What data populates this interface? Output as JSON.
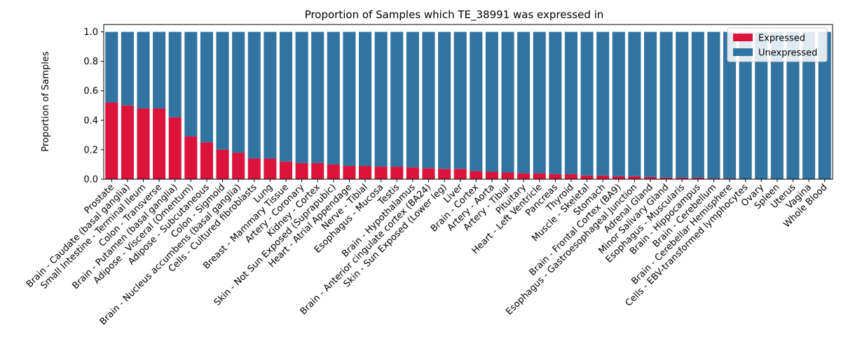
{
  "chart_data": {
    "type": "bar",
    "stacked": true,
    "title": "Proportion of Samples which TE_38991 was expressed in",
    "xlabel": "",
    "ylabel": "Proportion of Samples",
    "ylim": [
      0,
      1.05
    ],
    "yticks": [
      "0.0",
      "0.2",
      "0.4",
      "0.6",
      "0.8",
      "1.0"
    ],
    "legend_position": "top-right",
    "categories": [
      "Prostate",
      "Brain - Caudate (basal ganglia)",
      "Small Intestine - Terminal Ileum",
      "Colon - Transverse",
      "Brain - Putamen (basal ganglia)",
      "Adipose - Visceral (Omentum)",
      "Adipose - Subcutaneous",
      "Colon - Sigmoid",
      "Brain - Nucleus accumbens (basal ganglia)",
      "Cells - Cultured fibroblasts",
      "Lung",
      "Breast - Mammary Tissue",
      "Artery - Coronary",
      "Kidney - Cortex",
      "Skin - Not Sun Exposed (Suprapubic)",
      "Heart - Atrial Appendage",
      "Nerve - Tibial",
      "Esophagus - Mucosa",
      "Testis",
      "Brain - Hypothalamus",
      "Brain - Anterior cingulate cortex (BA24)",
      "Skin - Sun Exposed (Lower leg)",
      "Liver",
      "Brain - Cortex",
      "Artery - Aorta",
      "Artery - Tibial",
      "Pituitary",
      "Heart - Left Ventricle",
      "Pancreas",
      "Thyroid",
      "Muscle - Skeletal",
      "Stomach",
      "Brain - Frontal Cortex (BA9)",
      "Esophagus - Gastroesophageal Junction",
      "Adrenal Gland",
      "Minor Salivary Gland",
      "Esophagus - Muscularis",
      "Brain - Hippocampus",
      "Brain - Cerebellum",
      "Brain - Cerebellar Hemisphere",
      "Cells - EBV-transformed lymphocytes",
      "Ovary",
      "Spleen",
      "Uterus",
      "Vagina",
      "Whole Blood"
    ],
    "series": [
      {
        "name": "Expressed",
        "color": "#dc143c",
        "values": [
          0.52,
          0.5,
          0.48,
          0.48,
          0.42,
          0.29,
          0.25,
          0.2,
          0.18,
          0.14,
          0.14,
          0.12,
          0.11,
          0.11,
          0.1,
          0.09,
          0.09,
          0.085,
          0.085,
          0.08,
          0.075,
          0.07,
          0.07,
          0.055,
          0.05,
          0.045,
          0.04,
          0.04,
          0.035,
          0.035,
          0.025,
          0.025,
          0.02,
          0.02,
          0.015,
          0.01,
          0.01,
          0.01,
          0.005,
          0.005,
          0.0,
          0.0,
          0.0,
          0.0,
          0.0,
          0.0
        ]
      },
      {
        "name": "Unexpressed",
        "color": "#3274a1",
        "values": [
          0.48,
          0.5,
          0.52,
          0.52,
          0.58,
          0.71,
          0.75,
          0.8,
          0.82,
          0.86,
          0.86,
          0.88,
          0.89,
          0.89,
          0.9,
          0.91,
          0.91,
          0.915,
          0.915,
          0.92,
          0.925,
          0.93,
          0.93,
          0.945,
          0.95,
          0.955,
          0.96,
          0.96,
          0.965,
          0.965,
          0.975,
          0.975,
          0.98,
          0.98,
          0.985,
          0.99,
          0.99,
          0.99,
          0.995,
          0.995,
          1.0,
          1.0,
          1.0,
          1.0,
          1.0,
          1.0
        ]
      }
    ]
  }
}
